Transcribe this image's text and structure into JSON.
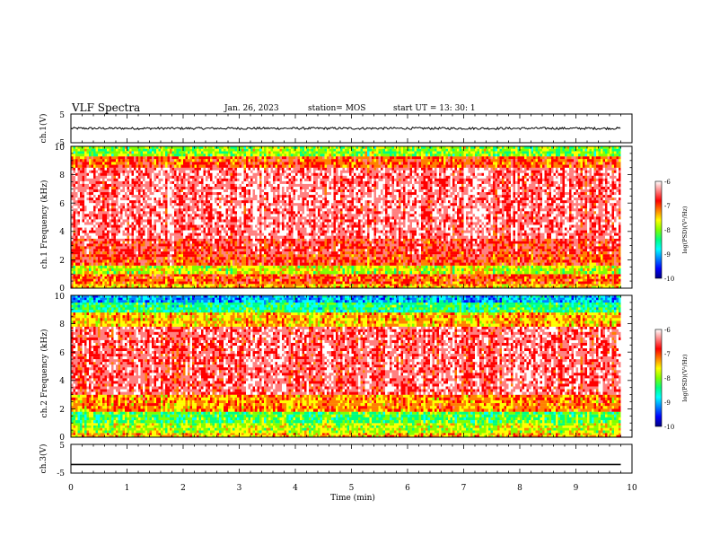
{
  "header": {
    "title": "VLF Spectra",
    "date": "Jan. 26, 2023",
    "station": "station= MOS",
    "start": "start UT =  13: 30: 1"
  },
  "colors": {
    "scale": [
      "#000080",
      "#0000ff",
      "#0080ff",
      "#00ffff",
      "#00ff80",
      "#80ff00",
      "#ffff00",
      "#ff8000",
      "#ff0000",
      "#ff8080",
      "#ffffff"
    ],
    "background": "#ffffff",
    "trace": "#000000"
  },
  "chart_data": [
    {
      "type": "line",
      "name": "ch1-waveform",
      "ylabel": "ch.1(V)",
      "ylim": [
        -5,
        5
      ],
      "yticks": [
        "5",
        "-5"
      ],
      "x": [
        0,
        9.8
      ],
      "y_mean": 0,
      "y_noise_amplitude": 0.4
    },
    {
      "type": "heatmap",
      "name": "ch1-spectrogram",
      "ylabel": "ch.1 Frequency (kHz)",
      "ylim": [
        0,
        10
      ],
      "yticks": [
        "0",
        "2",
        "4",
        "6",
        "8",
        "10"
      ],
      "xlim": [
        0,
        10
      ],
      "data_x_end": 9.8,
      "z_label": "log(PSD)(V²/Hz)",
      "z_range": [
        -10,
        -6
      ],
      "z_ticks": [
        "-6",
        "-7",
        "-8",
        "-9",
        "-10"
      ],
      "bands": [
        {
          "f": [
            0,
            0.3
          ],
          "level": 6.5
        },
        {
          "f": [
            0.3,
            1.0
          ],
          "level": 7.5
        },
        {
          "f": [
            1.0,
            1.6
          ],
          "level": 5.5
        },
        {
          "f": [
            1.6,
            2.4
          ],
          "level": 7.8
        },
        {
          "f": [
            2.4,
            3.5
          ],
          "level": 8.2
        },
        {
          "f": [
            3.5,
            8.5
          ],
          "level": 9.0
        },
        {
          "f": [
            8.5,
            9.3
          ],
          "level": 7.5
        },
        {
          "f": [
            9.3,
            10
          ],
          "level": 5.0
        }
      ]
    },
    {
      "type": "heatmap",
      "name": "ch2-spectrogram",
      "ylabel": "ch.2 Frequency (kHz)",
      "ylim": [
        0,
        10
      ],
      "yticks": [
        "0",
        "2",
        "4",
        "6",
        "8",
        "10"
      ],
      "xlim": [
        0,
        10
      ],
      "data_x_end": 9.8,
      "z_label": "log(PSD)(V²/Hz)",
      "z_range": [
        -10,
        -6
      ],
      "z_ticks": [
        "-6",
        "-7",
        "-8",
        "-9",
        "-10"
      ],
      "bands": [
        {
          "f": [
            0,
            0.3
          ],
          "level": 6.5
        },
        {
          "f": [
            0.3,
            1.0
          ],
          "level": 5.5
        },
        {
          "f": [
            1.0,
            1.8
          ],
          "level": 4.5
        },
        {
          "f": [
            1.8,
            3.0
          ],
          "level": 7.0
        },
        {
          "f": [
            3.0,
            7.8
          ],
          "level": 8.8
        },
        {
          "f": [
            7.8,
            8.8
          ],
          "level": 6.5
        },
        {
          "f": [
            8.8,
            9.5
          ],
          "level": 4.0
        },
        {
          "f": [
            9.5,
            10
          ],
          "level": 2.5
        }
      ]
    },
    {
      "type": "line",
      "name": "ch3-waveform",
      "ylabel": "ch.3(V)",
      "ylim": [
        -5,
        5
      ],
      "yticks": [
        "5",
        "-5"
      ],
      "x": [
        0,
        9.8
      ],
      "y_mean": -2.0,
      "y_noise_amplitude": 0
    }
  ],
  "xaxis": {
    "label": "Time (min)",
    "ticks": [
      "0",
      "1",
      "2",
      "3",
      "4",
      "5",
      "6",
      "7",
      "8",
      "9",
      "10"
    ],
    "xlim": [
      0,
      10
    ]
  }
}
